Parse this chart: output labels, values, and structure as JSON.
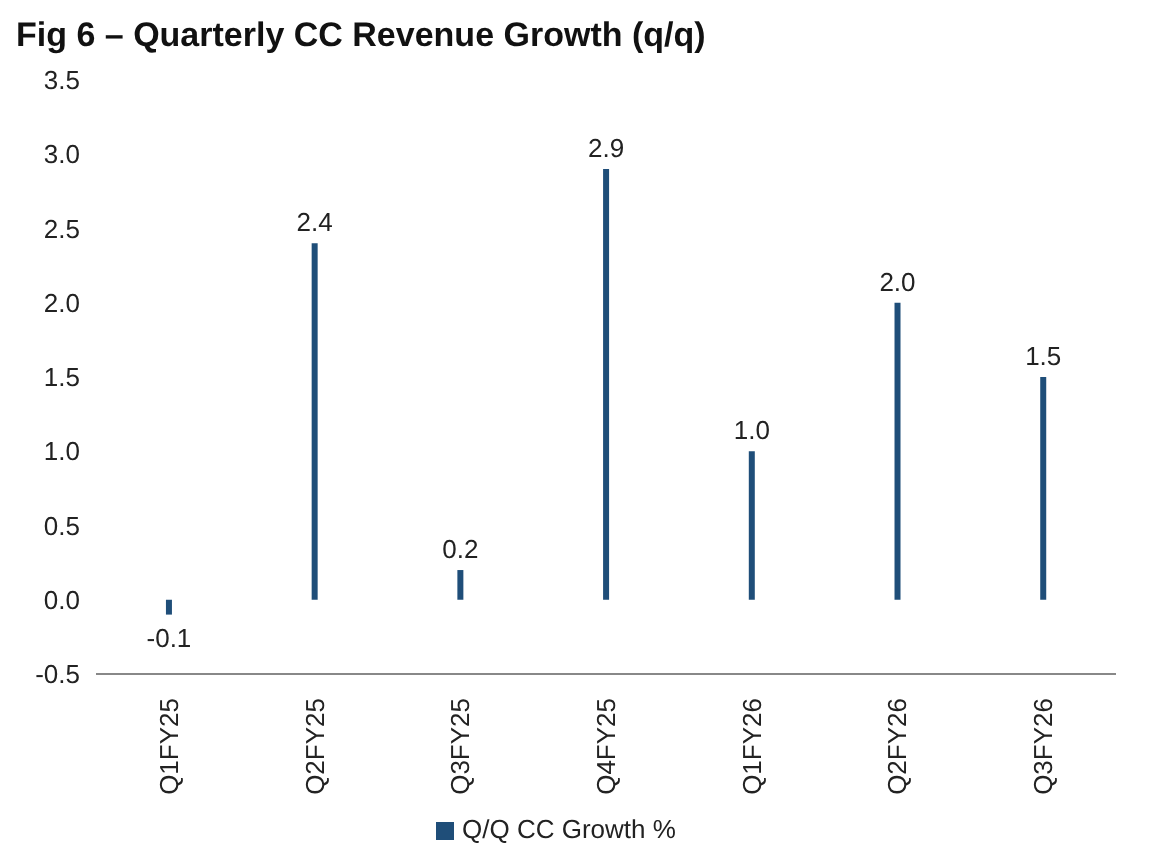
{
  "chart_data": {
    "type": "bar",
    "title": "Fig 6 – Quarterly CC Revenue Growth (q/q)",
    "categories": [
      "Q1FY25",
      "Q2FY25",
      "Q3FY25",
      "Q4FY25",
      "Q1FY26",
      "Q2FY26",
      "Q3FY26"
    ],
    "series": [
      {
        "name": "Q/Q CC Growth %",
        "color": "#1f4e79",
        "values": [
          -0.1,
          2.4,
          0.2,
          2.9,
          1.0,
          2.0,
          1.5
        ],
        "value_labels": [
          "-0.1",
          "2.4",
          "0.2",
          "2.9",
          "1.0",
          "2.0",
          "1.5"
        ]
      }
    ],
    "ylim": [
      -0.5,
      3.5
    ],
    "yticks": [
      {
        "value": -0.5,
        "label": "-0.5"
      },
      {
        "value": 0,
        "label": "0.0"
      },
      {
        "value": 0.5,
        "label": "0.5"
      },
      {
        "value": 1,
        "label": "1.0"
      },
      {
        "value": 1.5,
        "label": "1.5"
      },
      {
        "value": 2,
        "label": "2.0"
      },
      {
        "value": 2.5,
        "label": "2.5"
      },
      {
        "value": 3,
        "label": "3.0"
      },
      {
        "value": 3.5,
        "label": "3.5"
      }
    ],
    "grid": false,
    "legend": "bottom"
  }
}
